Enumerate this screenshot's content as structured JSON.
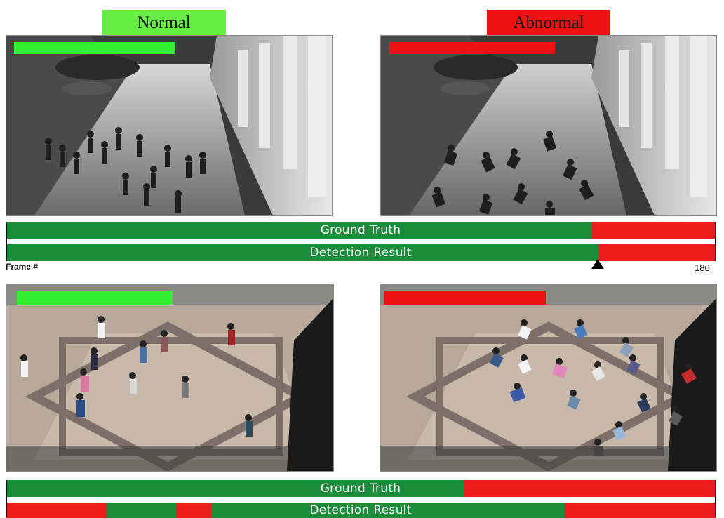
{
  "headers": {
    "normal": "Normal",
    "abnormal": "Abnormal"
  },
  "colors": {
    "normal_label_bg": "#66ee44",
    "abnormal_label_bg": "#ee1111",
    "normal_bar": "#33ee33",
    "abnormal_bar": "#ee1111",
    "timeline_green": "#1a8c3a",
    "timeline_red": "#ee1d1d"
  },
  "scene1": {
    "ground_truth": {
      "label": "Ground Truth",
      "abnormal_from": 0.826
    },
    "detection": {
      "label": "Detection Result",
      "abnormal_from": 0.836
    },
    "frame_label": "Frame #",
    "frame_value": "186"
  },
  "scene2": {
    "ground_truth": {
      "label": "Ground Truth",
      "abnormal_from": 0.646
    },
    "detection": {
      "label": "Detection Result",
      "segments": [
        {
          "state": "abnormal",
          "from": 0.0,
          "to": 0.142
        },
        {
          "state": "normal",
          "from": 0.142,
          "to": 0.24
        },
        {
          "state": "abnormal",
          "from": 0.24,
          "to": 0.29
        },
        {
          "state": "normal",
          "from": 0.29,
          "to": 0.788
        },
        {
          "state": "abnormal",
          "from": 0.788,
          "to": 1.0
        }
      ]
    }
  },
  "icons": {
    "marker": "triangle-up-marker"
  }
}
